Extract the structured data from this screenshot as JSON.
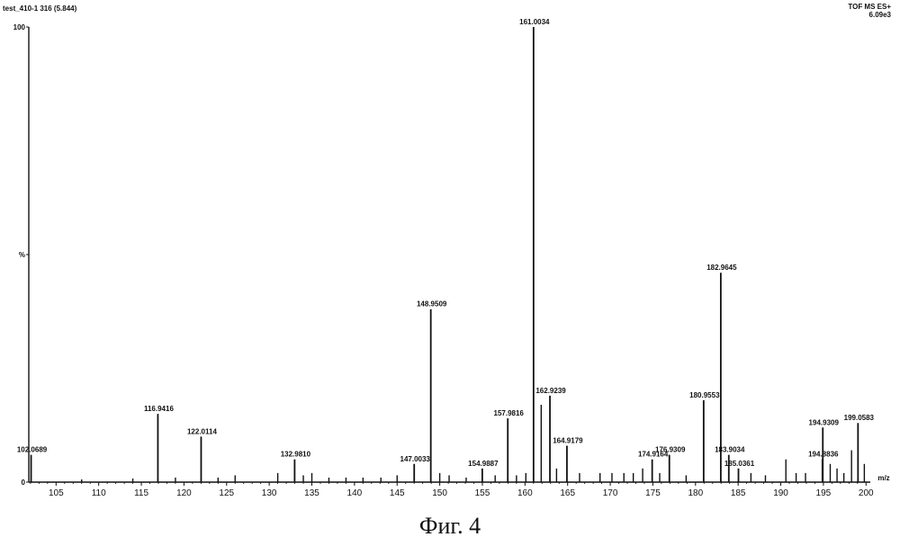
{
  "header": {
    "sample": "test_410-1 316 (5.844)",
    "mode": "TOF MS ES+",
    "intensity": "6.09e3"
  },
  "caption": "Фиг. 4",
  "chart_data": {
    "type": "bar",
    "title": "",
    "xlabel": "m/z",
    "ylabel": "%",
    "xlim": [
      101.8,
      200.5
    ],
    "ylim": [
      0,
      100
    ],
    "x_ticks": [
      105,
      110,
      115,
      120,
      125,
      130,
      135,
      140,
      145,
      150,
      155,
      160,
      165,
      170,
      175,
      180,
      185,
      190,
      195,
      200
    ],
    "y_ticks": [
      {
        "value": 100,
        "label": "100"
      },
      {
        "value": 50,
        "label": "%"
      },
      {
        "value": 0,
        "label": "0"
      }
    ],
    "peaks": [
      {
        "mz": 102.0689,
        "intensity": 6,
        "label": "102.0689"
      },
      {
        "mz": 116.9416,
        "intensity": 15,
        "label": "116.9416"
      },
      {
        "mz": 122.0114,
        "intensity": 10,
        "label": "122.0114"
      },
      {
        "mz": 132.981,
        "intensity": 5,
        "label": "132.9810"
      },
      {
        "mz": 147.0033,
        "intensity": 4,
        "label": "147.0033"
      },
      {
        "mz": 148.9509,
        "intensity": 38,
        "label": "148.9509"
      },
      {
        "mz": 154.9887,
        "intensity": 3,
        "label": "154.9887"
      },
      {
        "mz": 157.9816,
        "intensity": 14,
        "label": "157.9816"
      },
      {
        "mz": 161.0034,
        "intensity": 100,
        "label": "161.0034"
      },
      {
        "mz": 161.9,
        "intensity": 17,
        "label": ""
      },
      {
        "mz": 162.9239,
        "intensity": 19,
        "label": "162.9239"
      },
      {
        "mz": 164.9179,
        "intensity": 8,
        "label": "164.9179"
      },
      {
        "mz": 174.9164,
        "intensity": 5,
        "label": "174.9164"
      },
      {
        "mz": 176.9309,
        "intensity": 6,
        "label": "176.9309"
      },
      {
        "mz": 180.9553,
        "intensity": 18,
        "label": "180.9553"
      },
      {
        "mz": 182.9645,
        "intensity": 46,
        "label": "182.9645"
      },
      {
        "mz": 183.9034,
        "intensity": 6,
        "label": "183.9034"
      },
      {
        "mz": 185.0361,
        "intensity": 3,
        "label": "185.0361"
      },
      {
        "mz": 194.8836,
        "intensity": 5,
        "label": "194.8836"
      },
      {
        "mz": 194.9309,
        "intensity": 12,
        "label": "194.9309"
      },
      {
        "mz": 199.0583,
        "intensity": 13,
        "label": "199.0583"
      },
      {
        "mz": 198.3,
        "intensity": 7,
        "label": ""
      },
      {
        "mz": 190.6,
        "intensity": 5,
        "label": ""
      },
      {
        "mz": 195.8,
        "intensity": 4,
        "label": ""
      },
      {
        "mz": 199.8,
        "intensity": 4,
        "label": ""
      },
      {
        "mz": 163.7,
        "intensity": 3,
        "label": ""
      },
      {
        "mz": 166.4,
        "intensity": 2,
        "label": ""
      },
      {
        "mz": 168.8,
        "intensity": 2,
        "label": ""
      },
      {
        "mz": 170.2,
        "intensity": 2,
        "label": ""
      },
      {
        "mz": 171.6,
        "intensity": 2,
        "label": ""
      },
      {
        "mz": 172.7,
        "intensity": 2,
        "label": ""
      },
      {
        "mz": 173.8,
        "intensity": 3,
        "label": ""
      },
      {
        "mz": 175.8,
        "intensity": 2,
        "label": ""
      },
      {
        "mz": 178.9,
        "intensity": 1.5,
        "label": ""
      },
      {
        "mz": 186.5,
        "intensity": 2,
        "label": ""
      },
      {
        "mz": 188.2,
        "intensity": 1.5,
        "label": ""
      },
      {
        "mz": 191.8,
        "intensity": 2,
        "label": ""
      },
      {
        "mz": 192.9,
        "intensity": 2,
        "label": ""
      },
      {
        "mz": 196.6,
        "intensity": 3,
        "label": ""
      },
      {
        "mz": 197.4,
        "intensity": 2,
        "label": ""
      },
      {
        "mz": 159.0,
        "intensity": 1.5,
        "label": ""
      },
      {
        "mz": 160.1,
        "intensity": 2,
        "label": ""
      },
      {
        "mz": 156.5,
        "intensity": 1.5,
        "label": ""
      },
      {
        "mz": 150.0,
        "intensity": 2,
        "label": ""
      },
      {
        "mz": 151.1,
        "intensity": 1.5,
        "label": ""
      },
      {
        "mz": 153.1,
        "intensity": 1,
        "label": ""
      },
      {
        "mz": 145.0,
        "intensity": 1.5,
        "label": ""
      },
      {
        "mz": 143.1,
        "intensity": 1,
        "label": ""
      },
      {
        "mz": 141.0,
        "intensity": 1,
        "label": ""
      },
      {
        "mz": 139.0,
        "intensity": 1,
        "label": ""
      },
      {
        "mz": 137.0,
        "intensity": 1,
        "label": ""
      },
      {
        "mz": 135.0,
        "intensity": 2,
        "label": ""
      },
      {
        "mz": 134.0,
        "intensity": 1.5,
        "label": ""
      },
      {
        "mz": 131.0,
        "intensity": 2,
        "label": ""
      },
      {
        "mz": 126.0,
        "intensity": 1.5,
        "label": ""
      },
      {
        "mz": 124.0,
        "intensity": 1,
        "label": ""
      },
      {
        "mz": 119.0,
        "intensity": 1,
        "label": ""
      },
      {
        "mz": 114.0,
        "intensity": 0.8,
        "label": ""
      },
      {
        "mz": 108.0,
        "intensity": 0.6,
        "label": ""
      }
    ]
  }
}
